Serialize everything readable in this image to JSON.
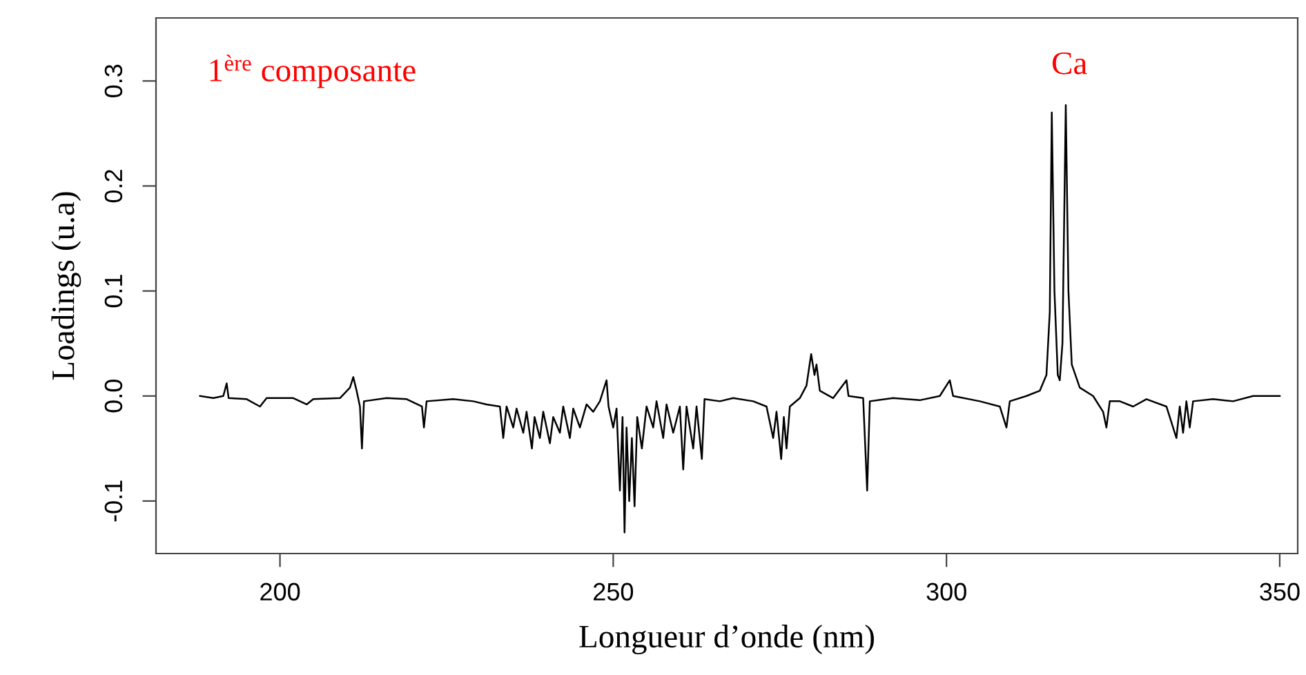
{
  "chart_data": {
    "type": "line",
    "xlabel": "Longueur d’onde (nm)",
    "ylabel": "Loadings (u.a)",
    "annotations": [
      "1$^{ère}$ composante",
      "Ca"
    ],
    "xlim": [
      181.4,
      352.7
    ],
    "ylim": [
      -0.15,
      0.36
    ],
    "xticks": [
      200,
      250,
      300,
      350
    ],
    "yticks": [
      {
        "value": -0.1,
        "label": "-0.1"
      },
      {
        "value": 0,
        "label": "0.0"
      },
      {
        "value": 0.1,
        "label": "0.1"
      },
      {
        "value": 0.2,
        "label": "0.2"
      },
      {
        "value": 0.3,
        "label": "0.3"
      }
    ],
    "grid": false,
    "legend": false,
    "marker": "none",
    "line_style": "solid",
    "series": [
      {
        "color": "#000000",
        "x": [
          188,
          190,
          191.5,
          192,
          192.3,
          195,
          197,
          198,
          202,
          204,
          205,
          209,
          210.5,
          211,
          211.5,
          212,
          212.3,
          212.6,
          216,
          219,
          221.3,
          221.6,
          222,
          226,
          229,
          231,
          233,
          233.5,
          234,
          235,
          235.5,
          236.5,
          237,
          237.8,
          238.2,
          239,
          239.5,
          240.5,
          241,
          242,
          242.5,
          243.5,
          244,
          245,
          246,
          247,
          248,
          249,
          249.3,
          250,
          250.5,
          251,
          251.4,
          251.7,
          252,
          252.4,
          252.8,
          253.2,
          253.6,
          254.3,
          255,
          256,
          256.5,
          257.5,
          258,
          259,
          260,
          260.5,
          261,
          262,
          262.5,
          263.3,
          263.7,
          266,
          268,
          271,
          273,
          274,
          274.5,
          275.2,
          275.6,
          276,
          276.5,
          278,
          279,
          279.7,
          280.2,
          280.5,
          281,
          283,
          285,
          285.3,
          287.5,
          288.1,
          288.5,
          292,
          296,
          299,
          300.5,
          301,
          305,
          308,
          309,
          309.5,
          312,
          314,
          315,
          315.5,
          315.8,
          316.2,
          316.7,
          317,
          317.4,
          317.9,
          318.3,
          318.8,
          320,
          322,
          323.5,
          324,
          324.5,
          326,
          328,
          330,
          333,
          334.5,
          335,
          335.5,
          336,
          336.5,
          337,
          340,
          343,
          346,
          350
        ],
        "values": [
          0,
          -0.002,
          0,
          0.012,
          -0.002,
          -0.003,
          -0.01,
          -0.002,
          -0.002,
          -0.008,
          -0.003,
          -0.002,
          0.008,
          0.018,
          0.005,
          -0.01,
          -0.05,
          -0.005,
          -0.002,
          -0.003,
          -0.01,
          -0.03,
          -0.005,
          -0.003,
          -0.005,
          -0.008,
          -0.01,
          -0.04,
          -0.01,
          -0.03,
          -0.012,
          -0.035,
          -0.015,
          -0.05,
          -0.02,
          -0.04,
          -0.015,
          -0.045,
          -0.02,
          -0.035,
          -0.01,
          -0.04,
          -0.012,
          -0.03,
          -0.008,
          -0.015,
          -0.005,
          0.015,
          -0.01,
          -0.03,
          -0.012,
          -0.09,
          -0.02,
          -0.13,
          -0.03,
          -0.1,
          -0.04,
          -0.105,
          -0.02,
          -0.05,
          -0.01,
          -0.03,
          -0.005,
          -0.04,
          -0.008,
          -0.035,
          -0.01,
          -0.07,
          -0.01,
          -0.05,
          -0.01,
          -0.06,
          -0.003,
          -0.005,
          -0.002,
          -0.005,
          -0.01,
          -0.04,
          -0.015,
          -0.06,
          -0.02,
          -0.05,
          -0.01,
          -0.002,
          0.01,
          0.04,
          0.02,
          0.03,
          0.005,
          -0.002,
          0.015,
          0,
          -0.002,
          -0.09,
          -0.005,
          -0.002,
          -0.004,
          0,
          0.015,
          0,
          -0.005,
          -0.01,
          -0.03,
          -0.005,
          0,
          0.005,
          0.02,
          0.08,
          0.27,
          0.1,
          0.02,
          0.015,
          0.05,
          0.277,
          0.1,
          0.03,
          0.008,
          0,
          -0.015,
          -0.03,
          -0.005,
          -0.005,
          -0.01,
          -0.003,
          -0.01,
          -0.04,
          -0.01,
          -0.035,
          -0.005,
          -0.03,
          -0.005,
          -0.003,
          -0.005,
          0,
          0
        ]
      }
    ]
  }
}
